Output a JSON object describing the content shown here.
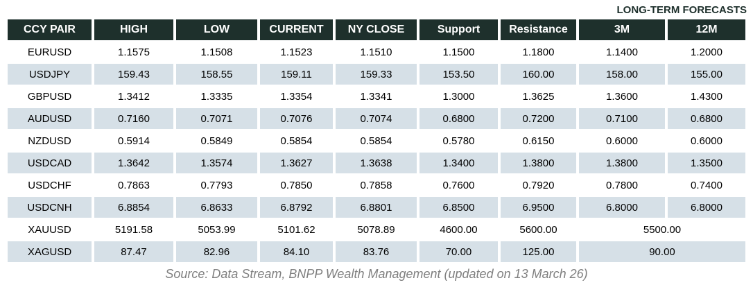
{
  "chart_data": {
    "type": "table",
    "forecast_group_label": "LONG-TERM FORECASTS",
    "columns": [
      "CCY PAIR",
      "HIGH",
      "LOW",
      "CURRENT",
      "NY CLOSE",
      "Support",
      "Resistance",
      "3M",
      "12M"
    ],
    "rows": [
      {
        "pair": "EURUSD",
        "high": "1.1575",
        "low": "1.1508",
        "current": "1.1523",
        "ny_close": "1.1510",
        "support": "1.1500",
        "resistance": "1.1800",
        "forecast_3m": "1.1400",
        "forecast_12m": "1.2000"
      },
      {
        "pair": "USDJPY",
        "high": "159.43",
        "low": "158.55",
        "current": "159.11",
        "ny_close": "159.33",
        "support": "153.50",
        "resistance": "160.00",
        "forecast_3m": "158.00",
        "forecast_12m": "155.00"
      },
      {
        "pair": "GBPUSD",
        "high": "1.3412",
        "low": "1.3335",
        "current": "1.3354",
        "ny_close": "1.3341",
        "support": "1.3000",
        "resistance": "1.3625",
        "forecast_3m": "1.3600",
        "forecast_12m": "1.4300"
      },
      {
        "pair": "AUDUSD",
        "high": "0.7160",
        "low": "0.7071",
        "current": "0.7076",
        "ny_close": "0.7074",
        "support": "0.6800",
        "resistance": "0.7200",
        "forecast_3m": "0.7100",
        "forecast_12m": "0.6800"
      },
      {
        "pair": "NZDUSD",
        "high": "0.5914",
        "low": "0.5849",
        "current": "0.5854",
        "ny_close": "0.5854",
        "support": "0.5780",
        "resistance": "0.6150",
        "forecast_3m": "0.6000",
        "forecast_12m": "0.6000"
      },
      {
        "pair": "USDCAD",
        "high": "1.3642",
        "low": "1.3574",
        "current": "1.3627",
        "ny_close": "1.3638",
        "support": "1.3400",
        "resistance": "1.3800",
        "forecast_3m": "1.3800",
        "forecast_12m": "1.3500"
      },
      {
        "pair": "USDCHF",
        "high": "0.7863",
        "low": "0.7793",
        "current": "0.7850",
        "ny_close": "0.7858",
        "support": "0.7600",
        "resistance": "0.7920",
        "forecast_3m": "0.7800",
        "forecast_12m": "0.7400"
      },
      {
        "pair": "USDCNH",
        "high": "6.8854",
        "low": "6.8633",
        "current": "6.8792",
        "ny_close": "6.8801",
        "support": "6.8500",
        "resistance": "6.9500",
        "forecast_3m": "6.8000",
        "forecast_12m": "6.8000"
      },
      {
        "pair": "XAUUSD",
        "high": "5191.58",
        "low": "5053.99",
        "current": "5101.62",
        "ny_close": "5078.89",
        "support": "4600.00",
        "resistance": "5600.00",
        "forecast_3m_12m": "5500.00"
      },
      {
        "pair": "XAGUSD",
        "high": "87.47",
        "low": "82.96",
        "current": "84.10",
        "ny_close": "83.76",
        "support": "70.00",
        "resistance": "125.00",
        "forecast_3m_12m": "90.00"
      }
    ],
    "source_note": "Source: Data Stream, BNPP Wealth Management (updated on 13 March 26)"
  },
  "colors": {
    "header_bg": "#1E302C",
    "header_text": "#FFFFFF",
    "row_bg": "#FFFFFF",
    "row_alt_bg": "#D6E0E7",
    "forecast_label_text": "#1E302C",
    "source_text": "#7F7F7F"
  }
}
